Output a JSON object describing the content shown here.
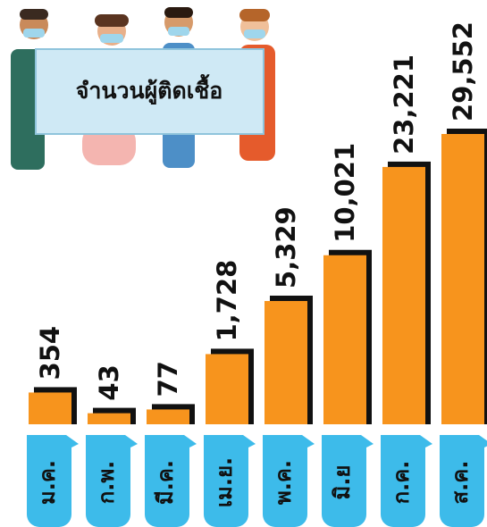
{
  "chart_data": {
    "type": "bar",
    "title": "จำนวนผู้ติดเชื้อ",
    "categories": [
      "ม.ค.",
      "ก.พ.",
      "มี.ค.",
      "เม.ย.",
      "พ.ค.",
      "มิ.ย",
      "ก.ค.",
      "ส.ค."
    ],
    "values": [
      354,
      43,
      77,
      1728,
      5329,
      10021,
      23221,
      29552
    ],
    "value_labels": [
      "354",
      "43",
      "77",
      "1,728",
      "5,329",
      "10,021",
      "23,221",
      "29,552"
    ],
    "color": "#f7941d"
  }
}
